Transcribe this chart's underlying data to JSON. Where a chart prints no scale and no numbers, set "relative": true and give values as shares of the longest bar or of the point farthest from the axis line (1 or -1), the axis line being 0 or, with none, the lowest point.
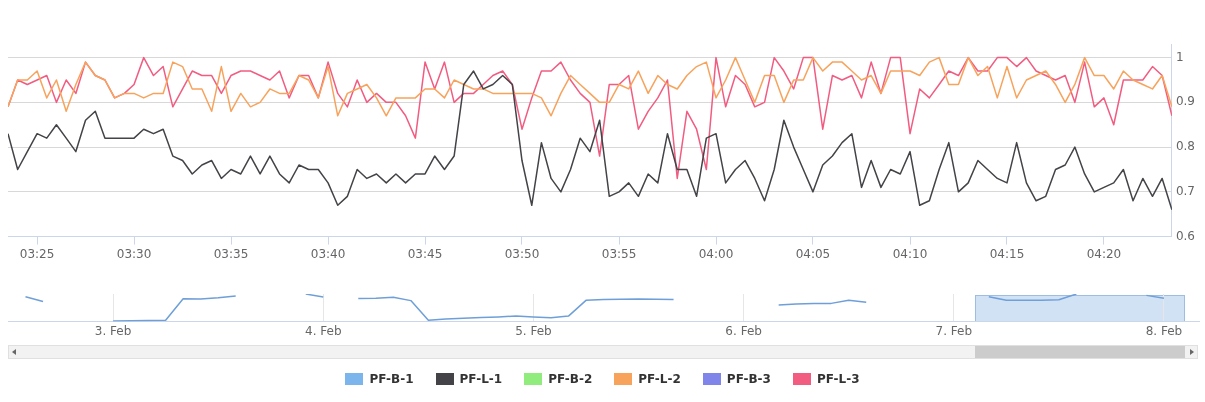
{
  "chart_data": [
    {
      "type": "line",
      "x": [
        3.3917,
        3.4,
        3.4083,
        3.4167,
        3.425,
        3.4333,
        3.4417,
        3.45,
        3.4583,
        3.4667,
        3.475,
        3.4833,
        3.4917,
        3.5,
        3.5083,
        3.5167,
        3.525,
        3.5333,
        3.5417,
        3.55,
        3.5583,
        3.5667,
        3.575,
        3.5833,
        3.5917,
        3.6,
        3.6083,
        3.6167,
        3.625,
        3.6333,
        3.6417,
        3.65,
        3.6583,
        3.6667,
        3.675,
        3.6833,
        3.6917,
        3.7,
        3.7083,
        3.7167,
        3.725,
        3.7333,
        3.7417,
        3.75,
        3.7583,
        3.7667,
        3.775,
        3.7833,
        3.7917,
        3.8,
        3.8083,
        3.8167,
        3.825,
        3.8333,
        3.8417,
        3.85,
        3.8583,
        3.8667,
        3.875,
        3.8833,
        3.8917,
        3.9,
        3.9083,
        3.9167,
        3.925,
        3.9333,
        3.9417,
        3.95,
        3.9583,
        3.9667,
        3.975,
        3.9833,
        3.9917,
        4,
        4.0083,
        4.0167,
        4.025,
        4.0333,
        4.0417,
        4.05,
        4.0583,
        4.0667,
        4.075,
        4.0833,
        4.0917,
        4.1,
        4.1083,
        4.1167,
        4.125,
        4.1333,
        4.1417,
        4.15,
        4.1583,
        4.1667,
        4.175,
        4.1833,
        4.1917,
        4.2,
        4.2083,
        4.2167,
        4.225,
        4.2333,
        4.2417,
        4.25,
        4.2583,
        4.2667,
        4.275,
        4.2833,
        4.2917,
        4.3,
        4.3083,
        4.3167,
        4.325,
        4.3333,
        4.3417,
        4.35,
        4.3583,
        4.3667,
        4.375,
        4.3833,
        4.3917
      ],
      "series": [
        {
          "name": "PF-B-1",
          "color": "#7cb5ec",
          "values": [
            null,
            null,
            null,
            null,
            null,
            null,
            null,
            null,
            null,
            null,
            null,
            null,
            null,
            null,
            null,
            null,
            null,
            null,
            null,
            null,
            null,
            null,
            null,
            null,
            null,
            null,
            null,
            null,
            null,
            null,
            null,
            null,
            null,
            null,
            null,
            null,
            null,
            null,
            null,
            null,
            null,
            null,
            null,
            null,
            null,
            null,
            null,
            null,
            null,
            null,
            null,
            null,
            null,
            null,
            null,
            null,
            null,
            null,
            null,
            null,
            null,
            null,
            null,
            null,
            null,
            null,
            null,
            null,
            null,
            null,
            null,
            null,
            null,
            null,
            null,
            null,
            null,
            null,
            null,
            null,
            null,
            null,
            null,
            null,
            null,
            null,
            null,
            null,
            null,
            null,
            null,
            null,
            null,
            null,
            null,
            null,
            null,
            null,
            null,
            null,
            null,
            null,
            null,
            null,
            null,
            null,
            null,
            null,
            null,
            null,
            null,
            null,
            null,
            null,
            null,
            null,
            null,
            null,
            null,
            null,
            null
          ]
        },
        {
          "name": "PF-L-1",
          "color": "#434348",
          "values": [
            0.83,
            0.75,
            0.79,
            0.83,
            0.82,
            0.85,
            0.82,
            0.79,
            0.86,
            0.88,
            0.82,
            0.82,
            0.82,
            0.82,
            0.84,
            0.83,
            0.84,
            0.78,
            0.77,
            0.74,
            0.76,
            0.77,
            0.73,
            0.75,
            0.74,
            0.78,
            0.74,
            0.78,
            0.74,
            0.72,
            0.76,
            0.75,
            0.75,
            0.72,
            0.67,
            0.69,
            0.75,
            0.73,
            0.74,
            0.72,
            0.74,
            0.72,
            0.74,
            0.74,
            0.78,
            0.75,
            0.78,
            0.94,
            0.97,
            0.93,
            0.94,
            0.96,
            0.94,
            0.77,
            0.67,
            0.81,
            0.73,
            0.7,
            0.75,
            0.82,
            0.79,
            0.86,
            0.69,
            0.7,
            0.72,
            0.69,
            0.74,
            0.72,
            0.83,
            0.75,
            0.75,
            0.69,
            0.82,
            0.83,
            0.72,
            0.75,
            0.77,
            0.73,
            0.68,
            0.75,
            0.86,
            0.8,
            0.75,
            0.7,
            0.76,
            0.78,
            0.81,
            0.83,
            0.71,
            0.77,
            0.71,
            0.75,
            0.74,
            0.79,
            0.67,
            0.68,
            0.75,
            0.81,
            0.7,
            0.72,
            0.77,
            0.75,
            0.73,
            0.72,
            0.81,
            0.72,
            0.68,
            0.69,
            0.75,
            0.76,
            0.8,
            0.74,
            0.7,
            0.71,
            0.72,
            0.75,
            0.68,
            0.73,
            0.69,
            0.73,
            0.66
          ]
        },
        {
          "name": "PF-B-2",
          "color": "#90ed7d",
          "values": [
            null,
            null,
            null,
            null,
            null,
            null,
            null,
            null,
            null,
            null,
            null,
            null,
            null,
            null,
            null,
            null,
            null,
            null,
            null,
            null,
            null,
            null,
            null,
            null,
            null,
            null,
            null,
            null,
            null,
            null,
            null,
            null,
            null,
            null,
            null,
            null,
            null,
            null,
            null,
            null,
            null,
            null,
            null,
            null,
            null,
            null,
            null,
            null,
            null,
            null,
            null,
            null,
            null,
            null,
            null,
            null,
            null,
            null,
            null,
            null,
            null,
            null,
            null,
            null,
            null,
            null,
            null,
            null,
            null,
            null,
            null,
            null,
            null,
            null,
            null,
            null,
            null,
            null,
            null,
            null,
            null,
            null,
            null,
            null,
            null,
            null,
            null,
            null,
            null,
            null,
            null,
            null,
            null,
            null,
            null,
            null,
            null,
            null,
            null,
            null,
            null,
            null,
            null,
            null,
            null,
            null,
            null,
            null,
            null,
            null,
            null,
            null,
            null,
            null,
            null,
            null,
            null,
            null,
            null,
            null,
            null
          ]
        },
        {
          "name": "PF-L-2",
          "color": "#f7a35c",
          "values": [
            0.89,
            0.95,
            0.95,
            0.97,
            0.91,
            0.95,
            0.88,
            0.94,
            0.99,
            0.96,
            0.95,
            0.91,
            0.92,
            0.92,
            0.91,
            0.92,
            0.92,
            0.99,
            0.98,
            0.93,
            0.93,
            0.88,
            0.98,
            0.88,
            0.92,
            0.89,
            0.9,
            0.93,
            0.92,
            0.92,
            0.96,
            0.95,
            0.91,
            0.98,
            0.87,
            0.92,
            0.93,
            0.94,
            0.91,
            0.87,
            0.91,
            0.91,
            0.91,
            0.93,
            0.93,
            0.91,
            0.95,
            0.94,
            0.93,
            0.93,
            0.92,
            0.92,
            0.92,
            0.92,
            0.92,
            0.91,
            0.87,
            0.92,
            0.96,
            0.94,
            0.92,
            0.9,
            0.9,
            0.94,
            0.93,
            0.97,
            0.92,
            0.96,
            0.94,
            0.93,
            0.96,
            0.98,
            0.99,
            0.91,
            0.95,
            1,
            0.95,
            0.9,
            0.96,
            0.96,
            0.9,
            0.95,
            0.95,
            1,
            0.97,
            0.99,
            0.99,
            0.97,
            0.95,
            0.96,
            0.92,
            0.97,
            0.97,
            0.97,
            0.96,
            0.99,
            1,
            0.94,
            0.94,
            1,
            0.96,
            0.98,
            0.91,
            0.98,
            0.91,
            0.95,
            0.96,
            0.97,
            0.94,
            0.9,
            0.94,
            1,
            0.96,
            0.96,
            0.93,
            0.97,
            0.95,
            0.94,
            0.93,
            0.96,
            0.89
          ]
        },
        {
          "name": "PF-B-3",
          "color": "#8085e9",
          "values": [
            null,
            null,
            null,
            null,
            null,
            null,
            null,
            null,
            null,
            null,
            null,
            null,
            null,
            null,
            null,
            null,
            null,
            null,
            null,
            null,
            null,
            null,
            null,
            null,
            null,
            null,
            null,
            null,
            null,
            null,
            null,
            null,
            null,
            null,
            null,
            null,
            null,
            null,
            null,
            null,
            null,
            null,
            null,
            null,
            null,
            null,
            null,
            null,
            null,
            null,
            null,
            null,
            null,
            null,
            null,
            null,
            null,
            null,
            null,
            null,
            null,
            null,
            null,
            null,
            null,
            null,
            null,
            null,
            null,
            null,
            null,
            null,
            null,
            null,
            null,
            null,
            null,
            null,
            null,
            null,
            null,
            null,
            null,
            null,
            null,
            null,
            null,
            null,
            null,
            null,
            null,
            null,
            null,
            null,
            null,
            null,
            null,
            null,
            null,
            null,
            null,
            null,
            null,
            null,
            null,
            null,
            null,
            null,
            null,
            null,
            null,
            null,
            null,
            null,
            null,
            null,
            null,
            null,
            null,
            null,
            null
          ]
        },
        {
          "name": "PF-L-3",
          "color": "#f15c80",
          "values": [
            0.89,
            0.95,
            0.94,
            0.95,
            0.96,
            0.9,
            0.95,
            0.92,
            0.99,
            0.96,
            0.95,
            0.91,
            0.92,
            0.94,
            1,
            0.96,
            0.98,
            0.89,
            0.93,
            0.97,
            0.96,
            0.96,
            0.92,
            0.96,
            0.97,
            0.97,
            0.96,
            0.95,
            0.97,
            0.91,
            0.96,
            0.96,
            0.91,
            0.99,
            0.92,
            0.89,
            0.95,
            0.9,
            0.92,
            0.9,
            0.9,
            0.87,
            0.82,
            0.99,
            0.93,
            0.99,
            0.9,
            0.92,
            0.92,
            0.94,
            0.96,
            0.97,
            0.94,
            0.84,
            0.91,
            0.97,
            0.97,
            0.99,
            0.95,
            0.92,
            0.9,
            0.78,
            0.94,
            0.94,
            0.96,
            0.84,
            0.88,
            0.91,
            0.95,
            0.73,
            0.88,
            0.84,
            0.75,
            1,
            0.89,
            0.96,
            0.94,
            0.89,
            0.9,
            1,
            0.97,
            0.93,
            1,
            1,
            0.84,
            0.96,
            0.95,
            0.96,
            0.91,
            0.99,
            0.92,
            1,
            1,
            0.83,
            0.93,
            0.91,
            0.94,
            0.97,
            0.96,
            1,
            0.97,
            0.97,
            1,
            1,
            0.98,
            1,
            0.97,
            0.96,
            0.95,
            0.96,
            0.9,
            0.99,
            0.89,
            0.91,
            0.85,
            0.95,
            0.95,
            0.95,
            0.98,
            0.96,
            0.87
          ]
        }
      ],
      "xlim": [
        3.3917,
        4.3917
      ],
      "xticks": [
        {
          "value": 3.4167,
          "label": "03:25"
        },
        {
          "value": 3.5,
          "label": "03:30"
        },
        {
          "value": 3.5833,
          "label": "03:35"
        },
        {
          "value": 3.6667,
          "label": "03:40"
        },
        {
          "value": 3.75,
          "label": "03:45"
        },
        {
          "value": 3.8333,
          "label": "03:50"
        },
        {
          "value": 3.9167,
          "label": "03:55"
        },
        {
          "value": 4,
          "label": "04:00"
        },
        {
          "value": 4.0833,
          "label": "04:05"
        },
        {
          "value": 4.1667,
          "label": "04:10"
        },
        {
          "value": 4.25,
          "label": "04:15"
        },
        {
          "value": 4.3333,
          "label": "04:20"
        }
      ],
      "ylim": [
        0.6,
        1.03
      ],
      "yticks": [
        0.6,
        0.7,
        0.8,
        0.9,
        1
      ],
      "grid": "y",
      "legend": "bottom",
      "marker": "none"
    },
    {
      "type": "line",
      "relative": true,
      "series": [
        {
          "color": "#6f9fd8",
          "values": [
            null,
            0.9,
            0.73,
            null,
            null,
            null,
            null,
            null,
            null,
            null,
            null,
            null,
            null,
            null,
            null,
            null,
            null,
            null,
            null,
            null,
            null,
            null,
            null,
            null,
            null,
            null,
            null,
            null,
            null,
            null,
            null,
            null,
            null,
            null,
            null,
            null,
            null,
            null,
            null,
            null,
            null,
            null,
            null,
            null,
            null,
            null,
            null,
            null,
            null,
            null,
            null,
            null,
            null,
            null,
            null,
            null,
            null,
            null,
            null,
            null,
            null,
            null,
            null,
            null,
            null,
            null,
            null,
            null,
            null
          ]
        },
        {
          "color": "#6f9fd8",
          "values": [
            null,
            null,
            null,
            null,
            null,
            null,
            0.02,
            0.03,
            0.04,
            0.05,
            0.83,
            0.82,
            0.86,
            0.93,
            null,
            null,
            null,
            null,
            null,
            null,
            null,
            null,
            null,
            null,
            null,
            null,
            null,
            null,
            null,
            null,
            null,
            null,
            null,
            null,
            null,
            null,
            null,
            null,
            null,
            null,
            null,
            null,
            null,
            null,
            null,
            null,
            null,
            null,
            null,
            null,
            null,
            null,
            null,
            null,
            null,
            null,
            null,
            null,
            null,
            null,
            null,
            null,
            null,
            null,
            null,
            null,
            null,
            null,
            null
          ]
        },
        {
          "color": "#6f9fd8",
          "values": [
            null,
            null,
            null,
            null,
            null,
            null,
            null,
            null,
            null,
            null,
            null,
            null,
            null,
            null,
            null,
            null,
            null,
            1,
            0.89,
            null,
            null,
            null,
            null,
            null,
            null,
            null,
            null,
            null,
            null,
            null,
            null,
            null,
            null,
            null,
            null,
            null,
            null,
            null,
            null,
            null,
            null,
            null,
            null,
            null,
            null,
            null,
            null,
            null,
            null,
            null,
            null,
            null,
            null,
            null,
            null,
            null,
            null,
            null,
            null,
            null,
            null,
            null,
            null,
            null,
            null,
            null,
            null,
            null,
            null
          ]
        },
        {
          "color": "#6f9fd8",
          "values": [
            null,
            null,
            null,
            null,
            null,
            null,
            null,
            null,
            null,
            null,
            null,
            null,
            null,
            null,
            null,
            null,
            null,
            null,
            null,
            null,
            0.84,
            0.85,
            0.88,
            0.76,
            0.05,
            0.09,
            0.12,
            0.15,
            0.17,
            0.2,
            0.17,
            0.14,
            0.2,
            0.77,
            0.8,
            0.81,
            0.82,
            0.81,
            0.8,
            null,
            null,
            null,
            null,
            null,
            null,
            null,
            null,
            null,
            null,
            null,
            null,
            null,
            null,
            null,
            null,
            null,
            null,
            null,
            null,
            null,
            null,
            null,
            null,
            null,
            null,
            null,
            null,
            null,
            null
          ]
        },
        {
          "color": "#6f9fd8",
          "values": [
            null,
            null,
            null,
            null,
            null,
            null,
            null,
            null,
            null,
            null,
            null,
            null,
            null,
            null,
            null,
            null,
            null,
            null,
            null,
            null,
            null,
            null,
            null,
            null,
            null,
            null,
            null,
            null,
            null,
            null,
            null,
            null,
            null,
            null,
            null,
            null,
            null,
            null,
            null,
            null,
            null,
            null,
            null,
            null,
            0.6,
            0.64,
            0.66,
            0.66,
            0.77,
            0.7,
            null,
            null,
            null,
            null,
            null,
            null,
            null,
            null,
            null,
            null,
            null,
            null,
            null,
            null,
            null,
            null,
            null,
            null,
            null
          ]
        },
        {
          "color": "#6f9fd8",
          "values": [
            null,
            null,
            null,
            null,
            null,
            null,
            null,
            null,
            null,
            null,
            null,
            null,
            null,
            null,
            null,
            null,
            null,
            null,
            null,
            null,
            null,
            null,
            null,
            null,
            null,
            null,
            null,
            null,
            null,
            null,
            null,
            null,
            null,
            null,
            null,
            null,
            null,
            null,
            null,
            null,
            null,
            null,
            null,
            null,
            null,
            null,
            null,
            null,
            null,
            null,
            null,
            null,
            null,
            null,
            null,
            null,
            0.9,
            0.77,
            0.77,
            0.77,
            0.79,
            1,
            null,
            null,
            null,
            null,
            null,
            null,
            null
          ]
        },
        {
          "color": "#6f9fd8",
          "values": [
            null,
            null,
            null,
            null,
            null,
            null,
            null,
            null,
            null,
            null,
            null,
            null,
            null,
            null,
            null,
            null,
            null,
            null,
            null,
            null,
            null,
            null,
            null,
            null,
            null,
            null,
            null,
            null,
            null,
            null,
            null,
            null,
            null,
            null,
            null,
            null,
            null,
            null,
            null,
            null,
            null,
            null,
            null,
            null,
            null,
            null,
            null,
            null,
            null,
            null,
            null,
            null,
            null,
            null,
            null,
            null,
            null,
            null,
            null,
            null,
            null,
            null,
            null,
            null,
            null,
            0.95,
            0.85,
            null,
            null
          ]
        }
      ],
      "categories": [
        null,
        null,
        null,
        null,
        null,
        null,
        "3. Feb",
        null,
        null,
        null,
        null,
        null,
        null,
        null,
        null,
        null,
        null,
        null,
        "4. Feb",
        null,
        null,
        null,
        null,
        null,
        null,
        null,
        null,
        null,
        null,
        null,
        "5. Feb",
        null,
        null,
        null,
        null,
        null,
        null,
        null,
        null,
        null,
        null,
        null,
        "6. Feb",
        null,
        null,
        null,
        null,
        null,
        null,
        null,
        null,
        null,
        null,
        null,
        "7. Feb",
        null,
        null,
        null,
        null,
        null,
        null,
        null,
        null,
        null,
        null,
        null,
        "8. Feb",
        null,
        null
      ],
      "grid": "x",
      "marker": "none"
    }
  ]
}
